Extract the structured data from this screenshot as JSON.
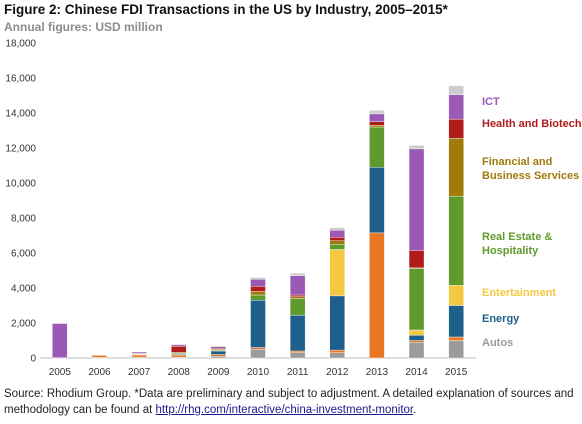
{
  "title": "Figure 2: Chinese FDI Transactions in the US by Industry, 2005–2015*",
  "subtitle": "Annual figures: USD million",
  "source_text": "Source: Rhodium Group. *Data are preliminary and subject to adjustment. A detailed explanation of sources and methodology can be found at ",
  "source_link": "http://rhg.com/interactive/china-investment-monitor",
  "source_end": ".",
  "colors": {
    "autos": "#9b9b9b",
    "energy": "#1f5f8b",
    "entertainment": "#f5c842",
    "realestate": "#5f9a2c",
    "financial": "#a07a0a",
    "health": "#b01b1b",
    "ict": "#9b59b6",
    "other": "#e87722"
  },
  "chart_data": {
    "type": "bar",
    "stacked": true,
    "categories": [
      "2005",
      "2006",
      "2007",
      "2008",
      "2009",
      "2010",
      "2011",
      "2012",
      "2013",
      "2014",
      "2015"
    ],
    "ylim": [
      0,
      18000
    ],
    "yticks": [
      0,
      2000,
      4000,
      6000,
      8000,
      10000,
      12000,
      14000,
      16000,
      18000
    ],
    "grid": false,
    "legend_position": "right",
    "series": [
      {
        "key": "autos",
        "name": "Autos",
        "values": [
          0,
          30,
          50,
          50,
          100,
          500,
          300,
          300,
          0,
          900,
          1000
        ]
      },
      {
        "key": "other",
        "name": "",
        "values": [
          20,
          120,
          120,
          120,
          100,
          100,
          100,
          150,
          7150,
          100,
          200
        ]
      },
      {
        "key": "energy",
        "name": "Energy",
        "values": [
          0,
          0,
          0,
          50,
          200,
          2700,
          2050,
          3100,
          3750,
          300,
          1800
        ]
      },
      {
        "key": "entertainment",
        "name": "Entertainment",
        "values": [
          0,
          0,
          0,
          0,
          0,
          0,
          0,
          2650,
          0,
          300,
          1150
        ]
      },
      {
        "key": "realestate",
        "name": "Real Estate & Hospitality",
        "values": [
          0,
          0,
          30,
          50,
          50,
          300,
          950,
          300,
          2300,
          3500,
          5100
        ]
      },
      {
        "key": "financial",
        "name": "Financial and Business Services",
        "values": [
          0,
          0,
          30,
          50,
          50,
          200,
          100,
          200,
          100,
          50,
          3300
        ]
      },
      {
        "key": "health",
        "name": "Health and Biotech",
        "values": [
          0,
          0,
          30,
          350,
          50,
          300,
          100,
          200,
          200,
          1000,
          1100
        ]
      },
      {
        "key": "ict",
        "name": "ICT",
        "values": [
          1950,
          30,
          80,
          80,
          100,
          400,
          1100,
          400,
          450,
          5800,
          1400
        ]
      },
      {
        "key": "misc",
        "name": "",
        "values": [
          0,
          20,
          0,
          50,
          50,
          100,
          150,
          150,
          200,
          200,
          500
        ]
      }
    ],
    "xlabel": "",
    "ylabel": ""
  }
}
